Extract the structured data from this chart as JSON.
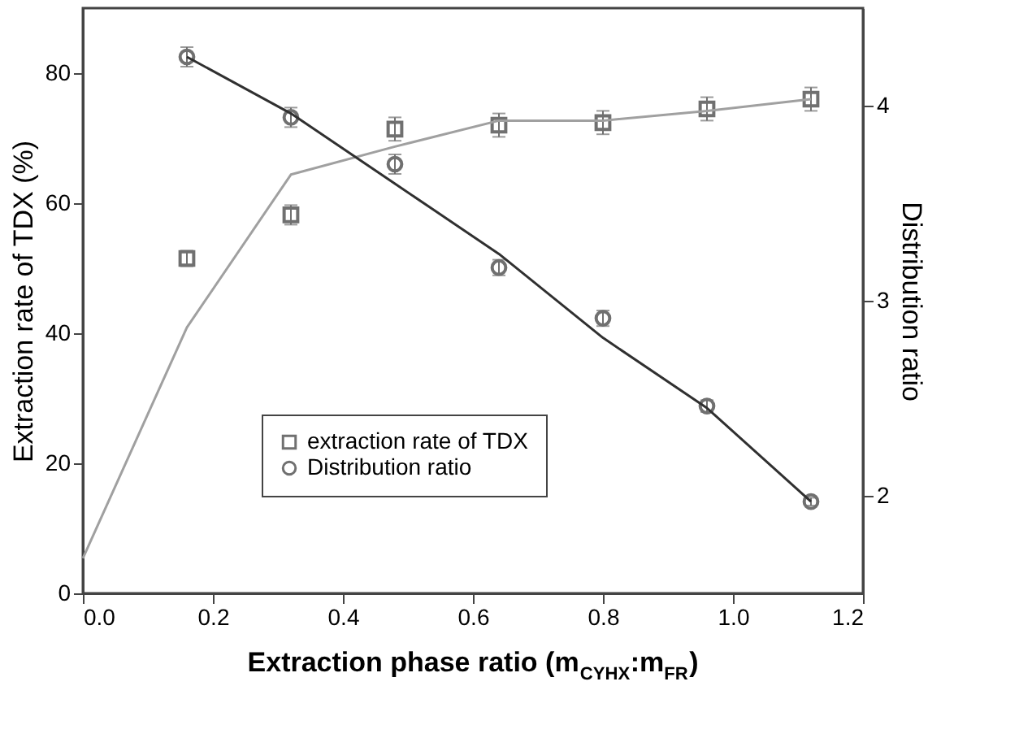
{
  "chart_data": {
    "type": "scatter",
    "xlabel": "Extraction phase ratio (m$_{CYHX}$:m$_{FR}$)",
    "ylabel": "Extraction rate of TDX (%)",
    "y2label": "Distribution ratio",
    "xlim": [
      0,
      1.2
    ],
    "xticks": [
      {
        "value": 0,
        "label": "0.0"
      },
      {
        "value": 0.2,
        "label": "0.2"
      },
      {
        "value": 0.4,
        "label": "0.4"
      },
      {
        "value": 0.6,
        "label": "0.6"
      },
      {
        "value": 0.8,
        "label": "0.8"
      },
      {
        "value": 1.0,
        "label": "1.0"
      },
      {
        "value": 1.2,
        "label": "1.2"
      }
    ],
    "ylim": [
      0,
      90
    ],
    "yticks": [
      0,
      20,
      40,
      60,
      80
    ],
    "y2lim": [
      1.5,
      4.5
    ],
    "y2ticks": [
      2,
      3,
      4
    ],
    "grid": false,
    "legend": "center",
    "series": [
      {
        "name": "extraction rate of TDX",
        "marker": "square",
        "color": "#707070",
        "x": [
          0.16,
          0.32,
          0.48,
          0.64,
          0.8,
          0.96,
          1.12
        ],
        "values": [
          51.5,
          58.2,
          71.4,
          72.0,
          72.4,
          74.5,
          76.0
        ],
        "errors": [
          1.2,
          1.5,
          1.8,
          1.8,
          1.8,
          1.8,
          1.8
        ]
      },
      {
        "name": "Distribution ratio",
        "marker": "circle",
        "color": "#707070",
        "axis": "y2",
        "x": [
          0.16,
          0.32,
          0.48,
          0.64,
          0.8,
          0.96,
          1.12
        ],
        "values": [
          4.25,
          3.94,
          3.7,
          3.17,
          2.91,
          2.46,
          1.97
        ],
        "errors": [
          0.05,
          0.05,
          0.05,
          0.04,
          0.04,
          0.03,
          0.02
        ]
      },
      {
        "type": "line",
        "color": "#a0a0a0",
        "x": [
          0,
          0.16,
          0.32,
          0.48,
          0.64,
          0.8,
          0.96,
          1.12
        ],
        "values": [
          5.4,
          40.9,
          64.4,
          68.7,
          72.7,
          72.7,
          74.2,
          76.0
        ]
      },
      {
        "type": "line",
        "color": "#303030",
        "axis": "y2",
        "x": [
          0.16,
          0.32,
          0.48,
          0.64,
          0.8,
          0.96,
          1.12
        ],
        "values": [
          4.25,
          3.96,
          3.6,
          3.24,
          2.81,
          2.45,
          1.97
        ]
      }
    ]
  }
}
